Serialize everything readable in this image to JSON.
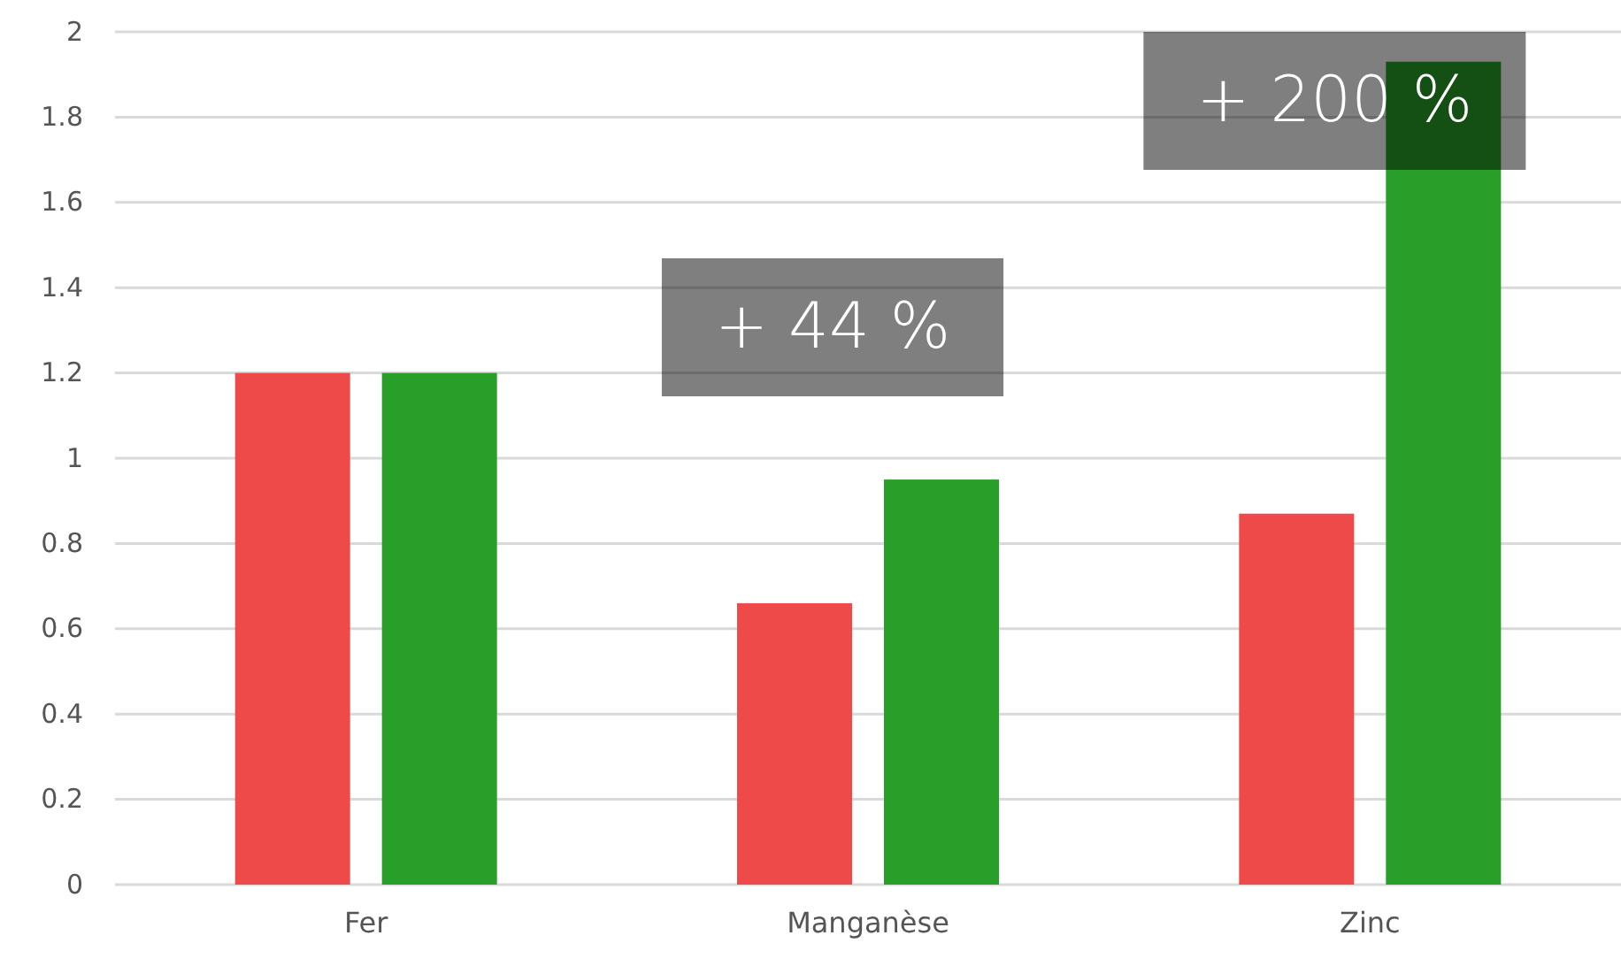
{
  "chart_data": {
    "type": "bar",
    "categories": [
      "Fer",
      "Manganèse",
      "Zinc"
    ],
    "series": [
      {
        "color": "#ee4a4a",
        "values": [
          1.2,
          0.66,
          0.87
        ]
      },
      {
        "color": "#289f28",
        "values": [
          1.2,
          0.95,
          1.93
        ]
      }
    ],
    "ylim": [
      0,
      2
    ],
    "yticks": [
      0,
      0.2,
      0.4,
      0.6,
      0.8,
      1,
      1.2,
      1.4,
      1.6,
      1.8,
      2
    ],
    "grid": "y",
    "annotations": [
      "+ 44 %",
      "+ 200 %"
    ]
  }
}
